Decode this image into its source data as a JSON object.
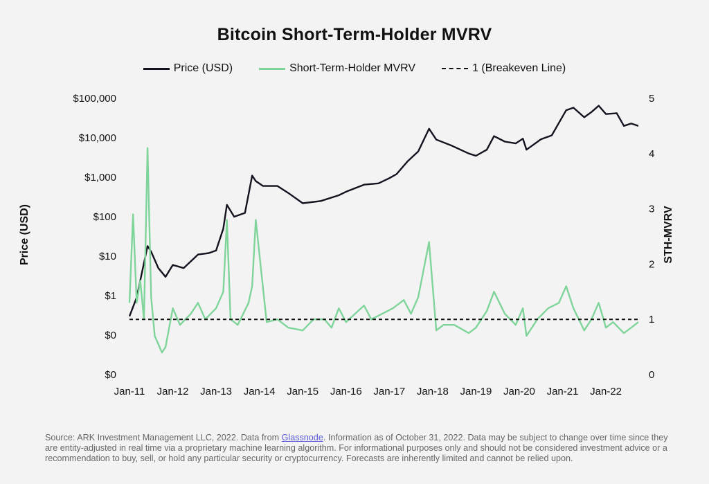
{
  "chart_data": {
    "type": "line",
    "title": "Bitcoin Short-Term-Holder MVRV",
    "ylabel_left": "Price (USD)",
    "ylabel_right": "STH-MVRV",
    "y_left_scale": "log",
    "y_left_ticks": [
      "$100,000",
      "$10,000",
      "$1,000",
      "$100",
      "$10",
      "$1",
      "$0",
      "$0"
    ],
    "y_right_ticks": [
      "5",
      "4",
      "3",
      "2",
      "1",
      "0"
    ],
    "y_right_range": [
      0,
      5
    ],
    "x_ticks": [
      "Jan-11",
      "Jan-12",
      "Jan-13",
      "Jan-14",
      "Jan-15",
      "Jan-16",
      "Jan-17",
      "Jan-18",
      "Jan-19",
      "Jan-20",
      "Jan-21",
      "Jan-22"
    ],
    "x_range": [
      "2011-01",
      "2022-10"
    ],
    "legend_position": "top",
    "grid": false,
    "series": [
      {
        "name": "Price (USD)",
        "color": "#13121f",
        "axis": "left",
        "x": [
          "2011-01",
          "2011-03",
          "2011-06",
          "2011-07",
          "2011-09",
          "2011-11",
          "2012-01",
          "2012-04",
          "2012-08",
          "2012-11",
          "2013-01",
          "2013-03",
          "2013-04",
          "2013-06",
          "2013-09",
          "2013-11",
          "2013-12",
          "2014-02",
          "2014-06",
          "2014-09",
          "2015-01",
          "2015-06",
          "2015-11",
          "2016-01",
          "2016-06",
          "2016-10",
          "2017-01",
          "2017-03",
          "2017-06",
          "2017-09",
          "2017-12",
          "2018-02",
          "2018-06",
          "2018-11",
          "2019-01",
          "2019-04",
          "2019-06",
          "2019-09",
          "2019-12",
          "2020-02",
          "2020-03",
          "2020-07",
          "2020-10",
          "2020-12",
          "2021-02",
          "2021-04",
          "2021-07",
          "2021-09",
          "2021-11",
          "2022-01",
          "2022-04",
          "2022-06",
          "2022-08",
          "2022-10"
        ],
        "y": [
          0.3,
          0.9,
          18,
          13,
          5,
          3,
          6,
          5,
          11,
          12,
          14,
          50,
          200,
          100,
          125,
          1100,
          800,
          600,
          600,
          400,
          220,
          250,
          350,
          430,
          650,
          700,
          950,
          1200,
          2500,
          4500,
          17000,
          9000,
          6500,
          4000,
          3500,
          5000,
          11000,
          8000,
          7200,
          9500,
          5000,
          9200,
          11500,
          24000,
          50000,
          58000,
          33000,
          45000,
          65000,
          40000,
          42000,
          20000,
          23000,
          20000
        ]
      },
      {
        "name": "Short-Term-Holder MVRV",
        "color": "#7fd49a",
        "axis": "right",
        "x": [
          "2011-01",
          "2011-02",
          "2011-03",
          "2011-04",
          "2011-05",
          "2011-06",
          "2011-07",
          "2011-08",
          "2011-10",
          "2011-11",
          "2012-01",
          "2012-03",
          "2012-06",
          "2012-08",
          "2012-10",
          "2013-01",
          "2013-03",
          "2013-04",
          "2013-05",
          "2013-07",
          "2013-10",
          "2013-11",
          "2013-12",
          "2014-03",
          "2014-06",
          "2014-09",
          "2015-01",
          "2015-04",
          "2015-07",
          "2015-09",
          "2015-11",
          "2016-01",
          "2016-06",
          "2016-08",
          "2016-11",
          "2017-02",
          "2017-05",
          "2017-07",
          "2017-09",
          "2017-12",
          "2018-02",
          "2018-04",
          "2018-07",
          "2018-11",
          "2019-01",
          "2019-04",
          "2019-06",
          "2019-09",
          "2019-12",
          "2020-02",
          "2020-03",
          "2020-06",
          "2020-09",
          "2020-12",
          "2021-02",
          "2021-04",
          "2021-07",
          "2021-09",
          "2021-11",
          "2022-01",
          "2022-03",
          "2022-06",
          "2022-08",
          "2022-10"
        ],
        "y": [
          1.3,
          2.9,
          1.3,
          1.7,
          1.0,
          4.1,
          1.4,
          0.7,
          0.4,
          0.5,
          1.2,
          0.9,
          1.1,
          1.3,
          1.0,
          1.2,
          1.5,
          2.8,
          1.0,
          0.9,
          1.3,
          1.6,
          2.8,
          0.95,
          1.0,
          0.85,
          0.8,
          1.0,
          1.0,
          0.85,
          1.2,
          0.95,
          1.25,
          1.0,
          1.1,
          1.2,
          1.35,
          1.1,
          1.4,
          2.4,
          0.8,
          0.9,
          0.9,
          0.75,
          0.85,
          1.15,
          1.5,
          1.1,
          0.9,
          1.2,
          0.7,
          1.0,
          1.2,
          1.3,
          1.6,
          1.2,
          0.8,
          1.0,
          1.3,
          0.85,
          0.95,
          0.75,
          0.85,
          0.95
        ]
      },
      {
        "name": "1 (Breakeven Line)",
        "color": "#111111",
        "axis": "right",
        "dashed": true,
        "x": [
          "2011-01",
          "2022-10"
        ],
        "y": [
          1,
          1
        ]
      }
    ]
  },
  "footnote": {
    "pre": "Source: ARK Investment Management LLC, 2022. Data from ",
    "link": "Glassnode",
    "post": ". Information as of October 31, 2022. Data may be subject to change over time since they are entity-adjusted in real time via a proprietary machine learning algorithm. For informational purposes only and should not be considered investment advice or a recommendation to buy, sell, or hold any particular security or cryptocurrency. Forecasts are inherently limited and cannot be relied upon."
  }
}
